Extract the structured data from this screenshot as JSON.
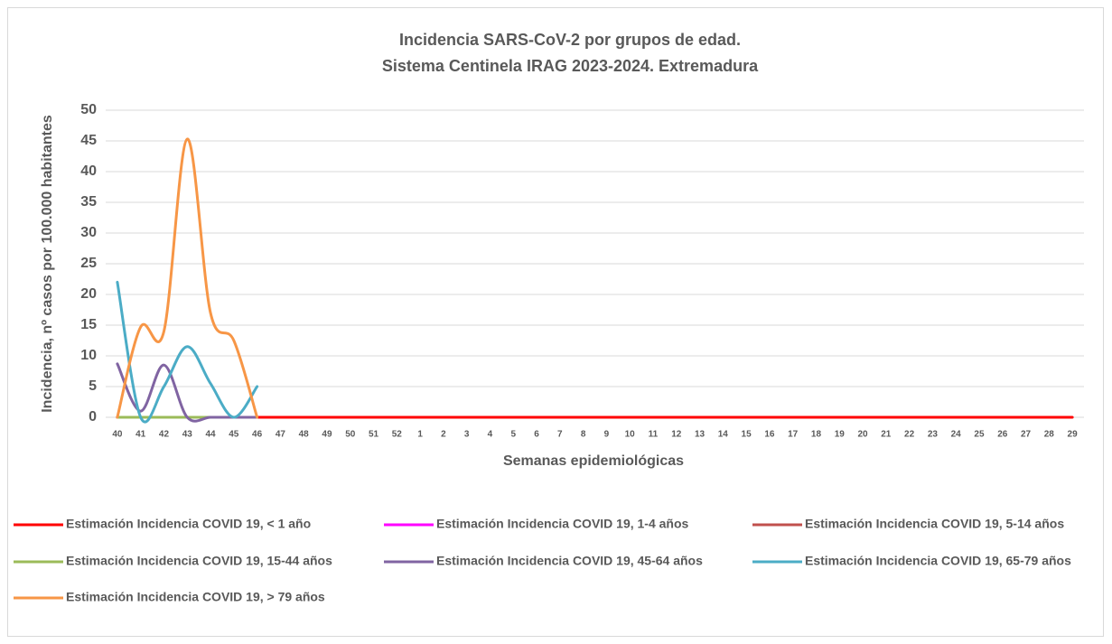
{
  "chart_data": {
    "type": "line",
    "title": [
      "Incidencia SARS-CoV-2 por grupos de edad.",
      "Sistema Centinela IRAG 2023-2024. Extremadura"
    ],
    "x_label": "Semanas epidemiológicas",
    "y_label": "Incidencia, nº casos por 100.000 habitantes",
    "categories": [
      "40",
      "41",
      "42",
      "43",
      "44",
      "45",
      "46",
      "47",
      "48",
      "49",
      "50",
      "51",
      "52",
      "1",
      "2",
      "3",
      "4",
      "5",
      "6",
      "7",
      "8",
      "9",
      "10",
      "11",
      "12",
      "13",
      "14",
      "15",
      "16",
      "17",
      "18",
      "19",
      "20",
      "21",
      "22",
      "23",
      "24",
      "25",
      "26",
      "27",
      "28",
      "29"
    ],
    "ylim": [
      0,
      50
    ],
    "yticks": [
      0,
      5,
      10,
      15,
      20,
      25,
      30,
      35,
      40,
      45,
      50
    ],
    "grid": true,
    "legend": "bottom",
    "series": [
      {
        "name": "Estimación Incidencia COVID 19, < 1 año",
        "color": "#ff0000",
        "values": [
          0,
          0,
          0,
          0,
          0,
          0,
          0,
          0,
          0,
          0,
          0,
          0,
          0,
          0,
          0,
          0,
          0,
          0,
          0,
          0,
          0,
          0,
          0,
          0,
          0,
          0,
          0,
          0,
          0,
          0,
          0,
          0,
          0,
          0,
          0,
          0,
          0,
          0,
          0,
          0,
          0,
          0
        ]
      },
      {
        "name": "Estimación Incidencia COVID 19, 1-4 años",
        "color": "#ff00ff",
        "values": [
          0,
          0,
          0,
          0,
          0,
          0,
          0,
          null,
          null,
          null,
          null,
          null,
          null,
          null,
          null,
          null,
          null,
          null,
          null,
          null,
          null,
          null,
          null,
          null,
          null,
          null,
          null,
          null,
          null,
          null,
          null,
          null,
          null,
          null,
          null,
          null,
          null,
          null,
          null,
          null,
          null,
          null
        ]
      },
      {
        "name": "Estimación Incidencia COVID 19, 5-14 años",
        "color": "#c0504d",
        "values": [
          0,
          0,
          0,
          0,
          0,
          0,
          0,
          null,
          null,
          null,
          null,
          null,
          null,
          null,
          null,
          null,
          null,
          null,
          null,
          null,
          null,
          null,
          null,
          null,
          null,
          null,
          null,
          null,
          null,
          null,
          null,
          null,
          null,
          null,
          null,
          null,
          null,
          null,
          null,
          null,
          null,
          null
        ]
      },
      {
        "name": "Estimación Incidencia COVID 19, 15-44 años",
        "color": "#9bbb59",
        "values": [
          0,
          0,
          0,
          0,
          0,
          0,
          0,
          null,
          null,
          null,
          null,
          null,
          null,
          null,
          null,
          null,
          null,
          null,
          null,
          null,
          null,
          null,
          null,
          null,
          null,
          null,
          null,
          null,
          null,
          null,
          null,
          null,
          null,
          null,
          null,
          null,
          null,
          null,
          null,
          null,
          null,
          null
        ]
      },
      {
        "name": "Estimación Incidencia COVID 19, 45-64 años",
        "color": "#8064a2",
        "values": [
          8.7,
          1,
          8.5,
          0,
          0,
          0,
          0,
          null,
          null,
          null,
          null,
          null,
          null,
          null,
          null,
          null,
          null,
          null,
          null,
          null,
          null,
          null,
          null,
          null,
          null,
          null,
          null,
          null,
          null,
          null,
          null,
          null,
          null,
          null,
          null,
          null,
          null,
          null,
          null,
          null,
          null,
          null
        ]
      },
      {
        "name": "Estimación Incidencia COVID 19, 65-79 años",
        "color": "#4bacc6",
        "values": [
          22,
          0,
          5,
          11.5,
          5.5,
          0,
          5,
          null,
          null,
          null,
          null,
          null,
          null,
          null,
          null,
          null,
          null,
          null,
          null,
          null,
          null,
          null,
          null,
          null,
          null,
          null,
          null,
          null,
          null,
          null,
          null,
          null,
          null,
          null,
          null,
          null,
          null,
          null,
          null,
          null,
          null,
          null
        ]
      },
      {
        "name": "Estimación Incidencia COVID 19, > 79 años",
        "color": "#f79646",
        "values": [
          0,
          14.7,
          14,
          45.3,
          17,
          12.5,
          0,
          null,
          null,
          null,
          null,
          null,
          null,
          null,
          null,
          null,
          null,
          null,
          null,
          null,
          null,
          null,
          null,
          null,
          null,
          null,
          null,
          null,
          null,
          null,
          null,
          null,
          null,
          null,
          null,
          null,
          null,
          null,
          null,
          null,
          null,
          null
        ]
      }
    ]
  }
}
